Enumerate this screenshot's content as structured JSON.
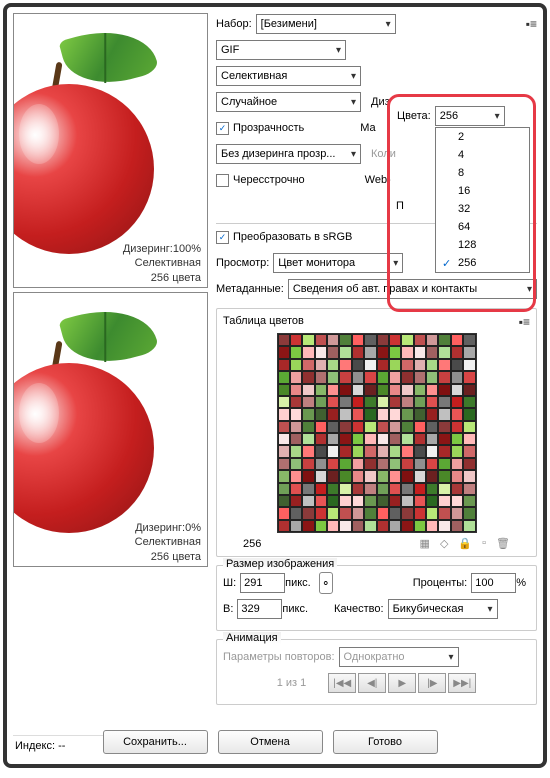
{
  "set": {
    "label": "Набор:",
    "value": "[Безимени]"
  },
  "format": "GIF",
  "reduction": "Селективная",
  "dither": "Случайное",
  "transparency": {
    "label": "Прозрачность",
    "checked": true
  },
  "trans_dither": "Без дизеринга прозр...",
  "interlaced": {
    "label": "Чересстрочно",
    "checked": false
  },
  "colors": {
    "label": "Цвета:",
    "value": "256",
    "options": [
      "2",
      "4",
      "8",
      "16",
      "32",
      "64",
      "128",
      "256"
    ],
    "selected": "256"
  },
  "diz_lbl": "Диз",
  "mat_lbl": "Ма",
  "kol_lbl": "Коли",
  "web_lbl": "Web-",
  "p_lbl": "П",
  "srgb": {
    "label": "Преобразовать в sRGB",
    "checked": true
  },
  "preview": {
    "label": "Просмотр:",
    "value": "Цвет монитора"
  },
  "metadata": {
    "label": "Метаданные:",
    "value": "Сведения об авт. правах и контакты"
  },
  "color_table": {
    "title": "Таблица цветов",
    "count": "256"
  },
  "preview1": {
    "line1": "Дизеринг:100%",
    "line2": "Селективная",
    "line3": "256 цвета"
  },
  "preview2": {
    "line1": "Дизеринг:0%",
    "line2": "Селективная",
    "line3": "256 цвета"
  },
  "index": {
    "label": "Индекс: --"
  },
  "image_size": {
    "title": "Размер изображения",
    "w_label": "Ш:",
    "w": "291",
    "h_label": "В:",
    "h": "329",
    "px": "пикс.",
    "percent_label": "Проценты:",
    "percent": "100",
    "percent_suffix": "%",
    "quality_label": "Качество:",
    "quality": "Бикубическая"
  },
  "animation": {
    "title": "Анимация",
    "repeat_label": "Параметры повторов:",
    "repeat_value": "Однократно",
    "frame": "1 из 1"
  },
  "buttons": {
    "save": "Сохранить...",
    "cancel": "Отмена",
    "done": "Готово"
  },
  "palette": [
    "#8b3a3a",
    "#c41e1e",
    "#d84545",
    "#8b1515",
    "#e85555",
    "#6b2020",
    "#a82828",
    "#cc3333",
    "#3d7a2a",
    "#5ba834",
    "#7cc842",
    "#2a6820",
    "#4a8828",
    "#9ad65a",
    "#b8e878",
    "#d8f0a8",
    "#f0a0a0",
    "#ffb8b8",
    "#ffd0d0",
    "#e88888",
    "#d06868",
    "#c05050",
    "#a83838",
    "#903030",
    "#f8e8e8",
    "#ffd8d8",
    "#f0c8c8",
    "#e0b0b0",
    "#d09898",
    "#c08080",
    "#b07070",
    "#a06060",
    "#6a9850",
    "#88b868",
    "#a8d888",
    "#50803a",
    "#70a058",
    "#90c078",
    "#b0e098",
    "#406030",
    "#ff9090",
    "#ff7878",
    "#ff6060",
    "#e05050",
    "#c84040",
    "#b03030",
    "#982020",
    "#801010",
    "#4a4a4a",
    "#606060",
    "#787878",
    "#909090",
    "#a8a8a8",
    "#c0c0c0",
    "#d8d8d8",
    "#f0f0f0"
  ]
}
